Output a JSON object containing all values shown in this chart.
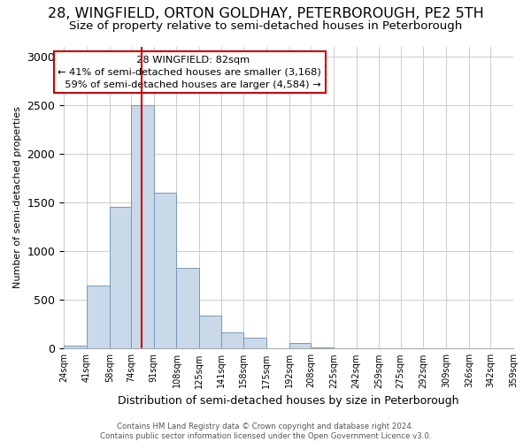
{
  "title": "28, WINGFIELD, ORTON GOLDHAY, PETERBOROUGH, PE2 5TH",
  "subtitle": "Size of property relative to semi-detached houses in Peterborough",
  "xlabel": "Distribution of semi-detached houses by size in Peterborough",
  "ylabel": "Number of semi-detached properties",
  "footer1": "Contains HM Land Registry data © Crown copyright and database right 2024.",
  "footer2": "Contains public sector information licensed under the Open Government Licence v3.0.",
  "bar_edges": [
    24,
    41,
    58,
    74,
    91,
    108,
    125,
    141,
    158,
    175,
    192,
    208,
    225,
    242,
    259,
    275,
    292,
    309,
    326,
    342,
    359
  ],
  "bar_heights": [
    30,
    650,
    1450,
    2500,
    1600,
    830,
    340,
    165,
    115,
    0,
    55,
    10,
    0,
    0,
    0,
    0,
    0,
    0,
    0,
    0
  ],
  "bar_color": "#c9d9e9",
  "bar_edge_color": "#7799bb",
  "property_size": 82,
  "property_label": "28 WINGFIELD: 82sqm",
  "pct_smaller": 41,
  "count_smaller": 3168,
  "pct_larger": 59,
  "count_larger": 4584,
  "vline_color": "#cc0000",
  "annotation_box_edge": "#cc0000",
  "ylim": [
    0,
    3100
  ],
  "xlim": [
    24,
    359
  ],
  "title_fontsize": 11.5,
  "subtitle_fontsize": 9.5,
  "tick_labels": [
    "24sqm",
    "41sqm",
    "58sqm",
    "74sqm",
    "91sqm",
    "108sqm",
    "125sqm",
    "141sqm",
    "158sqm",
    "175sqm",
    "192sqm",
    "208sqm",
    "225sqm",
    "242sqm",
    "259sqm",
    "275sqm",
    "292sqm",
    "309sqm",
    "326sqm",
    "342sqm",
    "359sqm"
  ],
  "background_color": "#ffffff",
  "grid_color": "#cccccc"
}
